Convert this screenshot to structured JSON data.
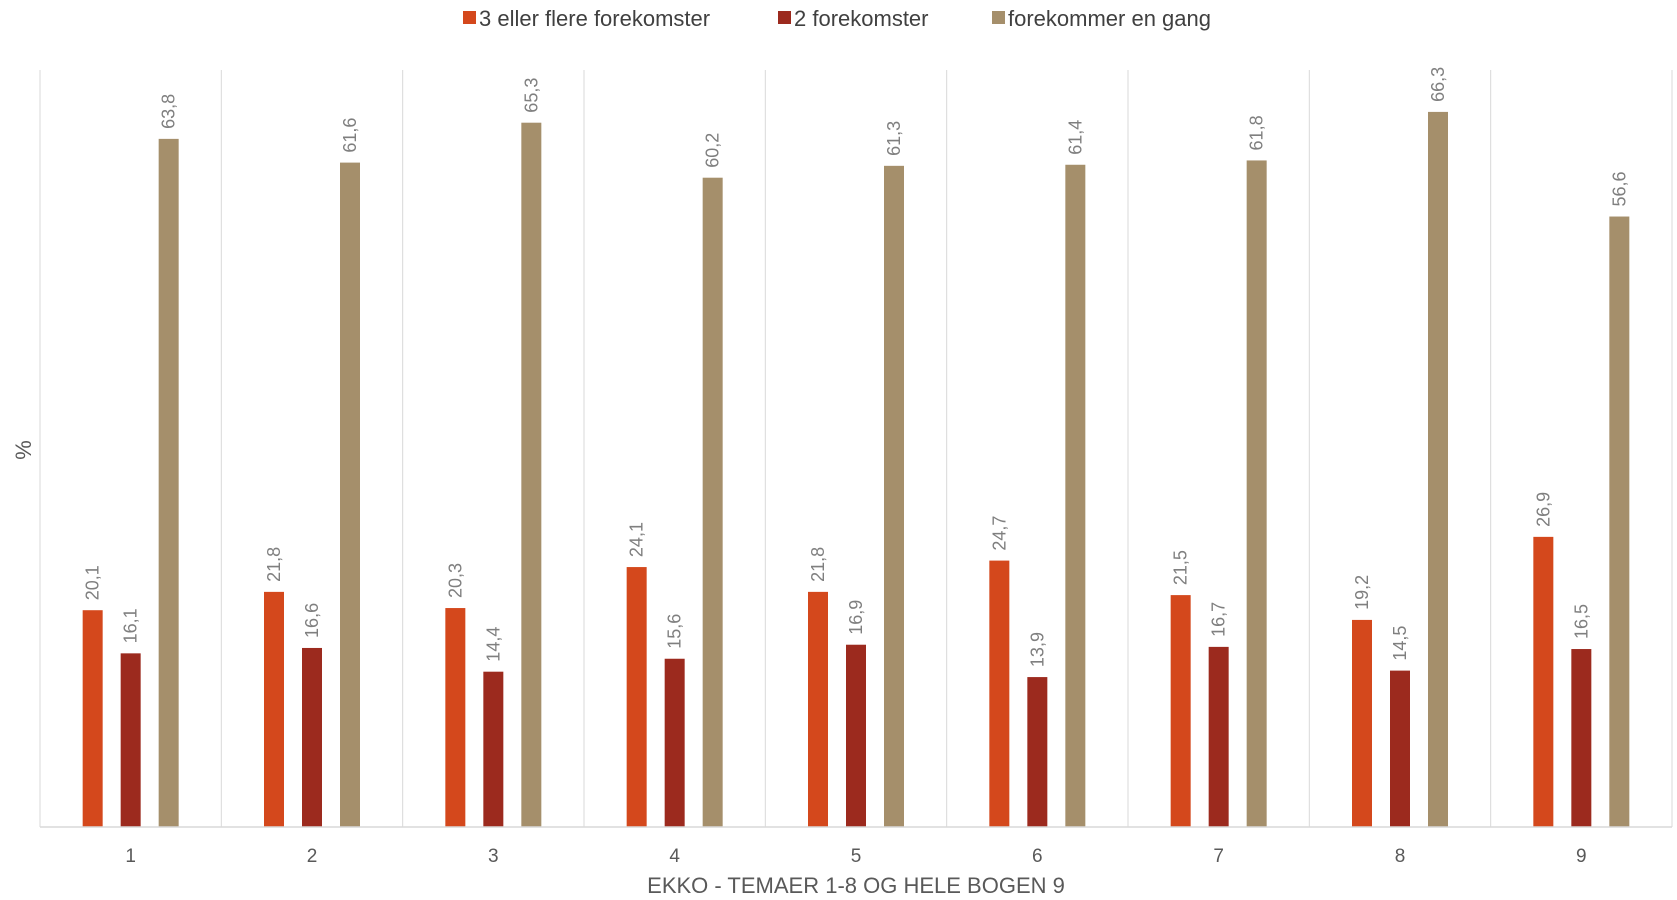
{
  "chart_data": {
    "type": "bar",
    "categories": [
      "1",
      "2",
      "3",
      "4",
      "5",
      "6",
      "7",
      "8",
      "9"
    ],
    "series": [
      {
        "name": "3 eller flere forekomster",
        "color": "#d4481c",
        "values": [
          20.1,
          21.8,
          20.3,
          24.1,
          21.8,
          24.7,
          21.5,
          19.2,
          26.9
        ],
        "labels": [
          "20,1",
          "21,8",
          "20,3",
          "24,1",
          "21,8",
          "24,7",
          "21,5",
          "19,2",
          "26,9"
        ]
      },
      {
        "name": "2 forekomster",
        "color": "#9c2a1e",
        "values": [
          16.1,
          16.6,
          14.4,
          15.6,
          16.9,
          13.9,
          16.7,
          14.5,
          16.5
        ],
        "labels": [
          "16,1",
          "16,6",
          "14,4",
          "15,6",
          "16,9",
          "13,9",
          "16,7",
          "14,5",
          "16,5"
        ]
      },
      {
        "name": "forekommer en gang",
        "color": "#a58f6b",
        "values": [
          63.8,
          61.6,
          65.3,
          60.2,
          61.3,
          61.4,
          61.8,
          66.3,
          56.6
        ],
        "labels": [
          "63,8",
          "61,6",
          "65,3",
          "60,2",
          "61,3",
          "61,4",
          "61,8",
          "66,3",
          "56,6"
        ]
      }
    ],
    "xlabel": "EKKO - TEMAER 1-8 OG HELE BOGEN 9",
    "ylabel": "%",
    "ylim": [
      0,
      70
    ],
    "legend_position": "top-center",
    "grid": "vertical category separators"
  }
}
